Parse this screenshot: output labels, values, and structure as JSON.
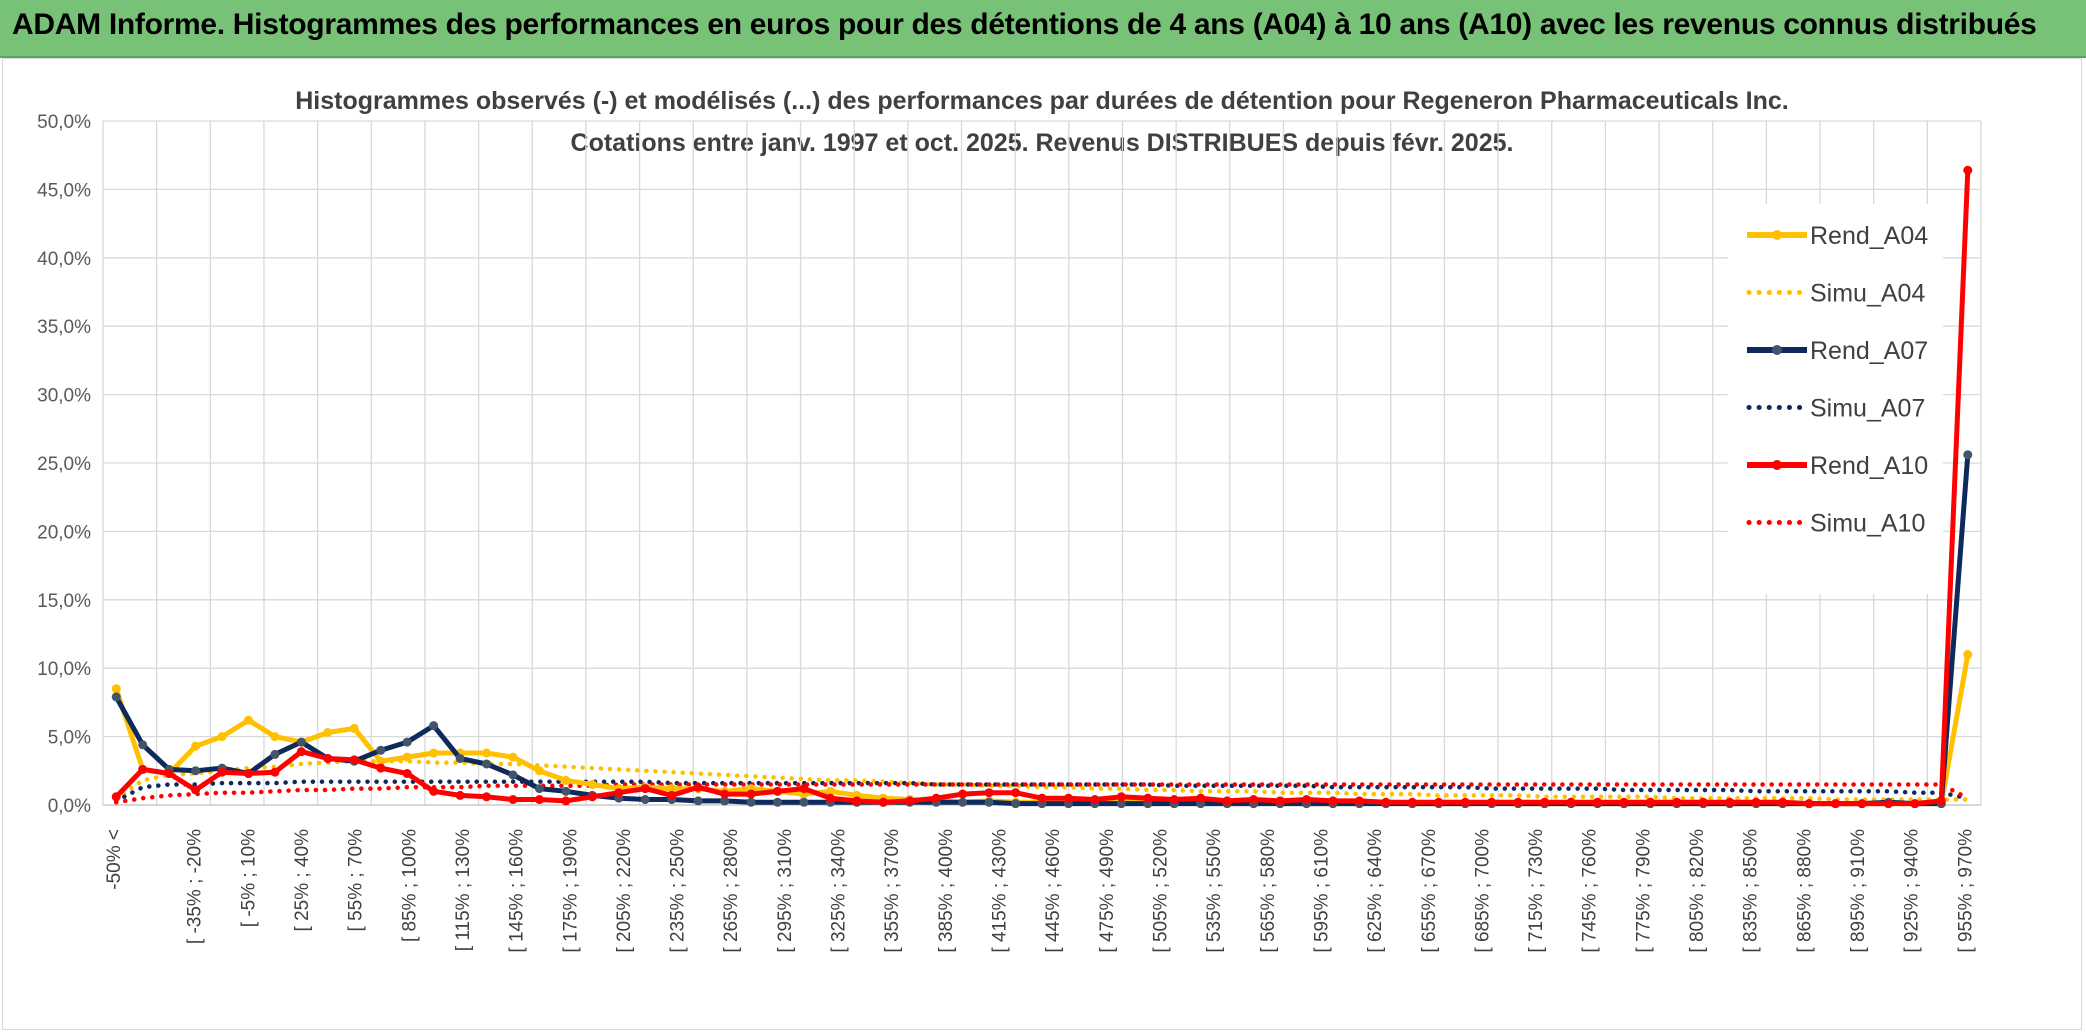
{
  "header": {
    "title": "ADAM Informe. Histogrammes des performances en euros pour des détentions de 4 ans (A04) à 10 ans (A10) avec les revenus connus distribués"
  },
  "chart_data": {
    "type": "line",
    "title": "Histogrammes observés (-) et modélisés (...) des performances par durées de détention pour Regeneron Pharmaceuticals Inc.",
    "subtitle": "Cotations entre janv. 1997 et oct. 2025. Revenus DISTRIBUES depuis févr. 2025.",
    "xlabel": "",
    "ylabel": "",
    "ylim": [
      0,
      50
    ],
    "y_ticks": [
      "0,0%",
      "5,0%",
      "10,0%",
      "15,0%",
      "20,0%",
      "25,0%",
      "30,0%",
      "35,0%",
      "40,0%",
      "45,0%",
      "50,0%"
    ],
    "x_tick_labels": [
      "-50% <",
      "[ -35% ; -20%",
      "[ -5% ; 10%",
      "[ 25% ; 40%",
      "[ 55% ; 70%",
      "[ 85% ; 100%",
      "[ 115% ; 130%",
      "[ 145% ; 160%",
      "[ 175% ; 190%",
      "[ 205% ; 220%",
      "[ 235% ; 250%",
      "[ 265% ; 280%",
      "[ 295% ; 310%",
      "[ 325% ; 340%",
      "[ 355% ; 370%",
      "[ 385% ; 400%",
      "[ 415% ; 430%",
      "[ 445% ; 460%",
      "[ 475% ; 490%",
      "[ 505% ; 520%",
      "[ 535% ; 550%",
      "[ 565% ; 580%",
      "[ 595% ; 610%",
      "[ 625% ; 640%",
      "[ 655% ; 670%",
      "[ 685% ; 700%",
      "[ 715% ; 730%",
      "[ 745% ; 760%",
      "[ 775% ; 790%",
      "[ 805% ; 820%",
      "[ 835% ; 850%",
      "[ 865% ; 880%",
      "[ 895% ; 910%",
      "[ 925% ; 940%",
      "[ 955% ; 970%"
    ],
    "legend_position": "right",
    "grid": true,
    "series": [
      {
        "name": "Rend_A04",
        "style": "solid",
        "color": "#ffc000",
        "values": [
          8.5,
          2.6,
          2.3,
          4.3,
          5.0,
          6.2,
          5.0,
          4.6,
          5.3,
          5.6,
          3.2,
          3.5,
          3.8,
          3.8,
          3.8,
          3.5,
          2.5,
          1.8,
          1.5,
          1.2,
          1.3,
          1.2,
          1.2,
          1.0,
          1.2,
          1.0,
          0.8,
          1.0,
          0.7,
          0.5,
          0.4,
          0.3,
          0.2,
          0.3,
          0.2,
          0.2,
          0.3,
          0.2,
          0.2,
          0.3,
          0.1,
          0.2,
          0.1,
          0.3,
          0.1,
          0.1,
          0.1,
          0.1,
          0.2,
          0.1,
          0.1,
          0.1,
          0.2,
          0.1,
          0.1,
          0.1,
          0.1,
          0.1,
          0.1,
          0.1,
          0.1,
          0.1,
          0.1,
          0.1,
          0.1,
          0.1,
          0.1,
          0.1,
          0.1,
          0.1,
          11.0
        ]
      },
      {
        "name": "Simu_A04",
        "style": "dotted",
        "color": "#ffc000",
        "values": [
          0.5,
          1.8,
          2.2,
          2.3,
          2.5,
          2.7,
          2.8,
          3.0,
          3.1,
          3.2,
          3.2,
          3.2,
          3.1,
          3.1,
          3.0,
          3.0,
          2.9,
          2.8,
          2.7,
          2.6,
          2.5,
          2.4,
          2.3,
          2.2,
          2.1,
          2.0,
          1.9,
          1.8,
          1.8,
          1.7,
          1.6,
          1.5,
          1.5,
          1.4,
          1.4,
          1.3,
          1.3,
          1.2,
          1.2,
          1.1,
          1.1,
          1.0,
          1.0,
          1.0,
          0.9,
          0.9,
          0.9,
          0.8,
          0.8,
          0.8,
          0.7,
          0.7,
          0.7,
          0.7,
          0.6,
          0.6,
          0.6,
          0.6,
          0.6,
          0.5,
          0.5,
          0.5,
          0.5,
          0.5,
          0.5,
          0.4,
          0.4,
          0.4,
          0.4,
          0.4,
          0.4
        ]
      },
      {
        "name": "Rend_A07",
        "style": "solid",
        "color": "#0e2a5c",
        "values": [
          7.9,
          4.4,
          2.6,
          2.5,
          2.7,
          2.3,
          3.7,
          4.6,
          3.4,
          3.2,
          4.0,
          4.6,
          5.8,
          3.4,
          3.0,
          2.2,
          1.2,
          1.0,
          0.7,
          0.5,
          0.4,
          0.4,
          0.3,
          0.3,
          0.2,
          0.2,
          0.2,
          0.2,
          0.2,
          0.2,
          0.2,
          0.2,
          0.2,
          0.2,
          0.1,
          0.1,
          0.1,
          0.1,
          0.1,
          0.1,
          0.1,
          0.1,
          0.1,
          0.1,
          0.1,
          0.1,
          0.1,
          0.1,
          0.1,
          0.1,
          0.1,
          0.1,
          0.1,
          0.1,
          0.1,
          0.1,
          0.1,
          0.1,
          0.1,
          0.1,
          0.1,
          0.1,
          0.1,
          0.1,
          0.1,
          0.1,
          0.1,
          0.2,
          0.1,
          0.1,
          25.6
        ]
      },
      {
        "name": "Simu_A07",
        "style": "dotted",
        "color": "#0e2a5c",
        "values": [
          0.3,
          1.3,
          1.5,
          1.5,
          1.6,
          1.6,
          1.6,
          1.7,
          1.7,
          1.7,
          1.7,
          1.7,
          1.7,
          1.7,
          1.7,
          1.7,
          1.7,
          1.7,
          1.7,
          1.7,
          1.7,
          1.6,
          1.6,
          1.6,
          1.6,
          1.6,
          1.6,
          1.6,
          1.6,
          1.6,
          1.6,
          1.5,
          1.5,
          1.5,
          1.5,
          1.5,
          1.5,
          1.5,
          1.5,
          1.5,
          1.4,
          1.4,
          1.4,
          1.4,
          1.4,
          1.4,
          1.3,
          1.3,
          1.3,
          1.3,
          1.3,
          1.3,
          1.2,
          1.2,
          1.2,
          1.2,
          1.2,
          1.1,
          1.1,
          1.1,
          1.1,
          1.1,
          1.0,
          1.0,
          1.0,
          1.0,
          1.0,
          1.0,
          0.9,
          0.9,
          0.5
        ]
      },
      {
        "name": "Rend_A10",
        "style": "solid",
        "color": "#ff0000",
        "values": [
          0.6,
          2.6,
          2.3,
          1.1,
          2.4,
          2.3,
          2.4,
          3.9,
          3.4,
          3.3,
          2.7,
          2.3,
          1.0,
          0.7,
          0.6,
          0.4,
          0.4,
          0.3,
          0.6,
          0.9,
          1.2,
          0.7,
          1.3,
          0.8,
          0.8,
          1.0,
          1.2,
          0.5,
          0.3,
          0.2,
          0.3,
          0.5,
          0.8,
          0.9,
          0.9,
          0.5,
          0.5,
          0.4,
          0.6,
          0.5,
          0.4,
          0.5,
          0.3,
          0.4,
          0.3,
          0.4,
          0.3,
          0.3,
          0.2,
          0.2,
          0.2,
          0.2,
          0.2,
          0.2,
          0.2,
          0.2,
          0.2,
          0.2,
          0.2,
          0.2,
          0.2,
          0.2,
          0.2,
          0.2,
          0.1,
          0.1,
          0.1,
          0.1,
          0.1,
          0.3,
          46.4
        ]
      },
      {
        "name": "Simu_A10",
        "style": "dotted",
        "color": "#ff0000",
        "values": [
          0.2,
          0.5,
          0.7,
          0.8,
          0.9,
          0.9,
          1.0,
          1.1,
          1.1,
          1.2,
          1.2,
          1.3,
          1.3,
          1.3,
          1.4,
          1.4,
          1.4,
          1.4,
          1.4,
          1.5,
          1.5,
          1.5,
          1.5,
          1.5,
          1.5,
          1.5,
          1.5,
          1.5,
          1.5,
          1.5,
          1.5,
          1.5,
          1.5,
          1.5,
          1.5,
          1.5,
          1.5,
          1.5,
          1.5,
          1.5,
          1.5,
          1.5,
          1.5,
          1.5,
          1.5,
          1.5,
          1.5,
          1.5,
          1.5,
          1.5,
          1.5,
          1.5,
          1.5,
          1.5,
          1.5,
          1.5,
          1.5,
          1.5,
          1.5,
          1.5,
          1.5,
          1.5,
          1.5,
          1.5,
          1.5,
          1.5,
          1.5,
          1.5,
          1.5,
          1.5,
          0.5
        ]
      }
    ]
  }
}
